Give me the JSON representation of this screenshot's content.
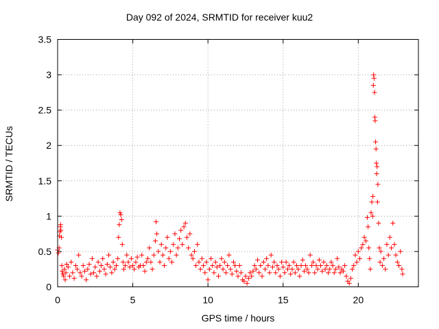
{
  "chart_data": {
    "type": "scatter",
    "title": "Day 092 of 2024, SRMTID for receiver kuu2",
    "xlabel": "GPS time / hours",
    "ylabel": "SRMTID / TECUs",
    "xlim": [
      0,
      24
    ],
    "ylim": [
      0,
      3.5
    ],
    "xticks": [
      0,
      5,
      10,
      15,
      20
    ],
    "xtick_labels": [
      "0",
      "5",
      "10",
      "15",
      "20"
    ],
    "yticks": [
      0,
      0.5,
      1,
      1.5,
      2,
      2.5,
      3,
      3.5
    ],
    "ytick_labels": [
      "0",
      "0.5",
      "1",
      "1.5",
      "2",
      "2.5",
      "3",
      "3.5"
    ],
    "grid": true,
    "marker": "+",
    "series": [
      {
        "name": "SRMTID",
        "color": "#ff0000",
        "points": [
          [
            0.0,
            0.52
          ],
          [
            0.05,
            0.48
          ],
          [
            0.1,
            0.55
          ],
          [
            0.12,
            0.72
          ],
          [
            0.15,
            0.78
          ],
          [
            0.18,
            0.85
          ],
          [
            0.2,
            0.88
          ],
          [
            0.22,
            0.8
          ],
          [
            0.25,
            0.7
          ],
          [
            0.28,
            0.3
          ],
          [
            0.3,
            0.22
          ],
          [
            0.35,
            0.18
          ],
          [
            0.4,
            0.15
          ],
          [
            0.45,
            0.25
          ],
          [
            0.5,
            0.1
          ],
          [
            0.55,
            0.2
          ],
          [
            0.6,
            0.32
          ],
          [
            0.7,
            0.28
          ],
          [
            0.8,
            0.15
          ],
          [
            0.9,
            0.35
          ],
          [
            1.0,
            0.2
          ],
          [
            1.1,
            0.12
          ],
          [
            1.2,
            0.3
          ],
          [
            1.3,
            0.25
          ],
          [
            1.4,
            0.45
          ],
          [
            1.5,
            0.2
          ],
          [
            1.6,
            0.15
          ],
          [
            1.7,
            0.3
          ],
          [
            1.8,
            0.22
          ],
          [
            1.9,
            0.1
          ],
          [
            2.0,
            0.25
          ],
          [
            2.1,
            0.32
          ],
          [
            2.2,
            0.18
          ],
          [
            2.3,
            0.4
          ],
          [
            2.4,
            0.2
          ],
          [
            2.5,
            0.28
          ],
          [
            2.6,
            0.15
          ],
          [
            2.7,
            0.35
          ],
          [
            2.8,
            0.22
          ],
          [
            2.9,
            0.3
          ],
          [
            3.0,
            0.4
          ],
          [
            3.1,
            0.25
          ],
          [
            3.2,
            0.18
          ],
          [
            3.3,
            0.32
          ],
          [
            3.4,
            0.45
          ],
          [
            3.5,
            0.28
          ],
          [
            3.6,
            0.2
          ],
          [
            3.7,
            0.35
          ],
          [
            3.8,
            0.25
          ],
          [
            3.9,
            0.3
          ],
          [
            4.0,
            0.4
          ],
          [
            4.05,
            0.7
          ],
          [
            4.1,
            0.88
          ],
          [
            4.15,
            1.05
          ],
          [
            4.2,
            1.02
          ],
          [
            4.25,
            0.95
          ],
          [
            4.3,
            0.6
          ],
          [
            4.35,
            0.35
          ],
          [
            4.4,
            0.25
          ],
          [
            4.5,
            0.3
          ],
          [
            4.6,
            0.45
          ],
          [
            4.7,
            0.35
          ],
          [
            4.8,
            0.28
          ],
          [
            4.9,
            0.4
          ],
          [
            5.0,
            0.3
          ],
          [
            5.1,
            0.25
          ],
          [
            5.2,
            0.35
          ],
          [
            5.3,
            0.42
          ],
          [
            5.4,
            0.28
          ],
          [
            5.5,
            0.3
          ],
          [
            5.6,
            0.45
          ],
          [
            5.7,
            0.3
          ],
          [
            5.8,
            0.22
          ],
          [
            5.9,
            0.35
          ],
          [
            6.0,
            0.4
          ],
          [
            6.1,
            0.55
          ],
          [
            6.2,
            0.35
          ],
          [
            6.3,
            0.25
          ],
          [
            6.4,
            0.45
          ],
          [
            6.5,
            0.65
          ],
          [
            6.55,
            0.92
          ],
          [
            6.6,
            0.75
          ],
          [
            6.7,
            0.5
          ],
          [
            6.8,
            0.35
          ],
          [
            6.9,
            0.6
          ],
          [
            7.0,
            0.45
          ],
          [
            7.1,
            0.3
          ],
          [
            7.2,
            0.55
          ],
          [
            7.3,
            0.7
          ],
          [
            7.4,
            0.4
          ],
          [
            7.5,
            0.5
          ],
          [
            7.6,
            0.35
          ],
          [
            7.7,
            0.6
          ],
          [
            7.8,
            0.75
          ],
          [
            7.9,
            0.45
          ],
          [
            8.0,
            0.55
          ],
          [
            8.1,
            0.68
          ],
          [
            8.2,
            0.8
          ],
          [
            8.3,
            0.6
          ],
          [
            8.4,
            0.85
          ],
          [
            8.5,
            0.9
          ],
          [
            8.6,
            0.7
          ],
          [
            8.7,
            0.55
          ],
          [
            8.8,
            0.75
          ],
          [
            8.9,
            0.45
          ],
          [
            9.0,
            0.4
          ],
          [
            9.1,
            0.5
          ],
          [
            9.2,
            0.3
          ],
          [
            9.3,
            0.6
          ],
          [
            9.4,
            0.35
          ],
          [
            9.5,
            0.25
          ],
          [
            9.6,
            0.4
          ],
          [
            9.7,
            0.3
          ],
          [
            9.8,
            0.2
          ],
          [
            9.9,
            0.35
          ],
          [
            10.0,
            0.1
          ],
          [
            10.1,
            0.25
          ],
          [
            10.2,
            0.4
          ],
          [
            10.3,
            0.3
          ],
          [
            10.4,
            0.2
          ],
          [
            10.5,
            0.35
          ],
          [
            10.6,
            0.28
          ],
          [
            10.7,
            0.15
          ],
          [
            10.8,
            0.3
          ],
          [
            10.9,
            0.4
          ],
          [
            11.0,
            0.25
          ],
          [
            11.1,
            0.35
          ],
          [
            11.2,
            0.2
          ],
          [
            11.3,
            0.3
          ],
          [
            11.4,
            0.45
          ],
          [
            11.5,
            0.25
          ],
          [
            11.6,
            0.18
          ],
          [
            11.7,
            0.35
          ],
          [
            11.8,
            0.3
          ],
          [
            11.9,
            0.22
          ],
          [
            12.0,
            0.15
          ],
          [
            12.1,
            0.3
          ],
          [
            12.2,
            0.2
          ],
          [
            12.3,
            0.1
          ],
          [
            12.4,
            0.08
          ],
          [
            12.5,
            0.15
          ],
          [
            12.6,
            0.05
          ],
          [
            12.7,
            0.12
          ],
          [
            12.8,
            0.2
          ],
          [
            12.9,
            0.15
          ],
          [
            13.0,
            0.22
          ],
          [
            13.1,
            0.3
          ],
          [
            13.2,
            0.25
          ],
          [
            13.3,
            0.38
          ],
          [
            13.4,
            0.2
          ],
          [
            13.5,
            0.3
          ],
          [
            13.6,
            0.15
          ],
          [
            13.7,
            0.35
          ],
          [
            13.8,
            0.25
          ],
          [
            13.9,
            0.4
          ],
          [
            14.0,
            0.3
          ],
          [
            14.1,
            0.2
          ],
          [
            14.2,
            0.45
          ],
          [
            14.3,
            0.28
          ],
          [
            14.4,
            0.35
          ],
          [
            14.5,
            0.2
          ],
          [
            14.6,
            0.3
          ],
          [
            14.7,
            0.25
          ],
          [
            14.8,
            0.15
          ],
          [
            14.9,
            0.35
          ],
          [
            15.0,
            0.28
          ],
          [
            15.1,
            0.2
          ],
          [
            15.2,
            0.35
          ],
          [
            15.3,
            0.25
          ],
          [
            15.4,
            0.3
          ],
          [
            15.5,
            0.18
          ],
          [
            15.6,
            0.25
          ],
          [
            15.7,
            0.35
          ],
          [
            15.8,
            0.2
          ],
          [
            15.9,
            0.3
          ],
          [
            16.0,
            0.25
          ],
          [
            16.1,
            0.15
          ],
          [
            16.2,
            0.3
          ],
          [
            16.3,
            0.38
          ],
          [
            16.4,
            0.22
          ],
          [
            16.5,
            0.3
          ],
          [
            16.6,
            0.25
          ],
          [
            16.7,
            0.2
          ],
          [
            16.8,
            0.45
          ],
          [
            16.9,
            0.3
          ],
          [
            17.0,
            0.35
          ],
          [
            17.1,
            0.2
          ],
          [
            17.2,
            0.3
          ],
          [
            17.3,
            0.25
          ],
          [
            17.4,
            0.38
          ],
          [
            17.5,
            0.3
          ],
          [
            17.6,
            0.22
          ],
          [
            17.7,
            0.35
          ],
          [
            17.8,
            0.25
          ],
          [
            17.9,
            0.3
          ],
          [
            18.0,
            0.2
          ],
          [
            18.1,
            0.25
          ],
          [
            18.2,
            0.35
          ],
          [
            18.3,
            0.3
          ],
          [
            18.4,
            0.2
          ],
          [
            18.5,
            0.25
          ],
          [
            18.6,
            0.4
          ],
          [
            18.7,
            0.28
          ],
          [
            18.8,
            0.2
          ],
          [
            18.9,
            0.25
          ],
          [
            19.0,
            0.22
          ],
          [
            19.1,
            0.3
          ],
          [
            19.2,
            0.15
          ],
          [
            19.3,
            0.08
          ],
          [
            19.4,
            0.05
          ],
          [
            19.5,
            0.12
          ],
          [
            19.6,
            0.25
          ],
          [
            19.7,
            0.3
          ],
          [
            19.8,
            0.45
          ],
          [
            19.9,
            0.35
          ],
          [
            20.0,
            0.5
          ],
          [
            20.1,
            0.4
          ],
          [
            20.2,
            0.55
          ],
          [
            20.3,
            0.6
          ],
          [
            20.4,
            0.7
          ],
          [
            20.5,
            0.65
          ],
          [
            20.6,
            0.98
          ],
          [
            20.65,
            0.85
          ],
          [
            20.7,
            0.55
          ],
          [
            20.75,
            0.4
          ],
          [
            20.8,
            0.25
          ],
          [
            20.85,
            1.05
          ],
          [
            20.9,
            1.2
          ],
          [
            20.95,
            1.0
          ],
          [
            20.97,
            1.28
          ],
          [
            21.0,
            2.85
          ],
          [
            21.02,
            3.0
          ],
          [
            21.05,
            2.95
          ],
          [
            21.08,
            2.75
          ],
          [
            21.1,
            2.4
          ],
          [
            21.12,
            2.35
          ],
          [
            21.15,
            2.05
          ],
          [
            21.18,
            1.95
          ],
          [
            21.2,
            1.75
          ],
          [
            21.22,
            1.6
          ],
          [
            21.25,
            1.7
          ],
          [
            21.28,
            1.2
          ],
          [
            21.3,
            1.45
          ],
          [
            21.35,
            0.9
          ],
          [
            21.4,
            0.55
          ],
          [
            21.45,
            0.35
          ],
          [
            21.5,
            0.5
          ],
          [
            21.6,
            0.3
          ],
          [
            21.7,
            0.4
          ],
          [
            21.8,
            0.25
          ],
          [
            21.9,
            0.6
          ],
          [
            22.0,
            0.45
          ],
          [
            22.1,
            0.7
          ],
          [
            22.2,
            0.55
          ],
          [
            22.3,
            0.9
          ],
          [
            22.4,
            0.6
          ],
          [
            22.5,
            0.45
          ],
          [
            22.6,
            0.35
          ],
          [
            22.7,
            0.3
          ],
          [
            22.8,
            0.5
          ],
          [
            22.9,
            0.25
          ],
          [
            22.95,
            0.18
          ]
        ]
      }
    ]
  }
}
